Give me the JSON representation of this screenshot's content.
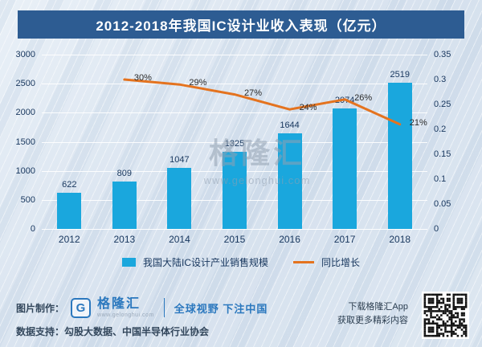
{
  "title": "2012-2018年我国IC设计业收入表现（亿元）",
  "watermark": {
    "brand": "格隆汇",
    "url": "www.gelonghui.com"
  },
  "chart_data": {
    "type": "bar",
    "subtype": "bar-line combo",
    "categories": [
      "2012",
      "2013",
      "2014",
      "2015",
      "2016",
      "2017",
      "2018"
    ],
    "series": [
      {
        "name": "我国大陆IC设计产业销售规模",
        "type": "bar",
        "axis": "left",
        "color": "#1aa7dd",
        "values": [
          622,
          809,
          1047,
          1325,
          1644,
          2074,
          2519
        ]
      },
      {
        "name": "同比增长",
        "type": "line",
        "axis": "right",
        "color": "#e4731f",
        "values": [
          null,
          0.3,
          0.29,
          0.27,
          0.24,
          0.26,
          0.21
        ],
        "point_labels": [
          "",
          "30%",
          "29%",
          "27%",
          "24%",
          "26%",
          "21%"
        ]
      }
    ],
    "left_axis": {
      "min": 0,
      "max": 3000,
      "step": 500,
      "ticks_top_down": [
        "3000",
        "2500",
        "2000",
        "1500",
        "1000",
        "500",
        "0"
      ]
    },
    "right_axis": {
      "min": 0,
      "max": 0.35,
      "step": 0.05,
      "ticks_top_down": [
        "0.35",
        "0.3",
        "0.25",
        "0.2",
        "0.15",
        "0.1",
        "0.05",
        "0"
      ]
    },
    "grid": true,
    "legend_position": "bottom"
  },
  "footer": {
    "made_by_label": "图片制作：",
    "logo_letter": "G",
    "brand": "格隆汇",
    "brand_url": "www.gelonghui.com",
    "slogan": "全球视野 下注中国",
    "data_support": "数据支持：勾股大数据、中国半导体行业协会",
    "download_line1": "下载格隆汇App",
    "download_line2": "获取更多精彩内容"
  },
  "colors": {
    "title_bg": "#2d5c92",
    "bar": "#1aa7dd",
    "line": "#e4731f",
    "text": "#17365d"
  }
}
